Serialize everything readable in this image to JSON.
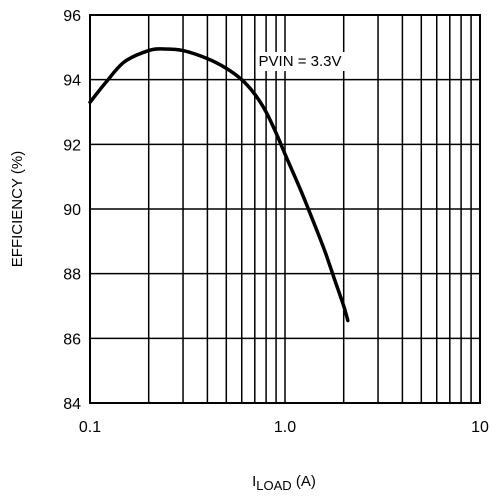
{
  "chart_data": {
    "type": "line",
    "x_scale": "log",
    "xlim": [
      0.1,
      10
    ],
    "ylim": [
      84,
      96
    ],
    "xticks": [
      "0.1",
      "1.0",
      "10"
    ],
    "yticks": [
      "84",
      "86",
      "88",
      "90",
      "92",
      "94",
      "96"
    ],
    "xlabel": {
      "main": "I",
      "sub": "LOAD",
      "unit": " (A)"
    },
    "ylabel": "EFFICIENCY (%)",
    "grid": true,
    "annotation": "PVIN = 3.3V",
    "series": [
      {
        "color": "#000000",
        "x": [
          0.1,
          0.12,
          0.15,
          0.2,
          0.24,
          0.3,
          0.4,
          0.5,
          0.6,
          0.7,
          0.8,
          0.9,
          1.0,
          1.2,
          1.4,
          1.6,
          1.8,
          2.0,
          2.1
        ],
        "y": [
          93.3,
          93.9,
          94.55,
          94.9,
          94.95,
          94.9,
          94.65,
          94.35,
          94.0,
          93.55,
          93.0,
          92.35,
          91.7,
          90.6,
          89.6,
          88.7,
          87.8,
          87.0,
          86.55
        ]
      }
    ]
  }
}
